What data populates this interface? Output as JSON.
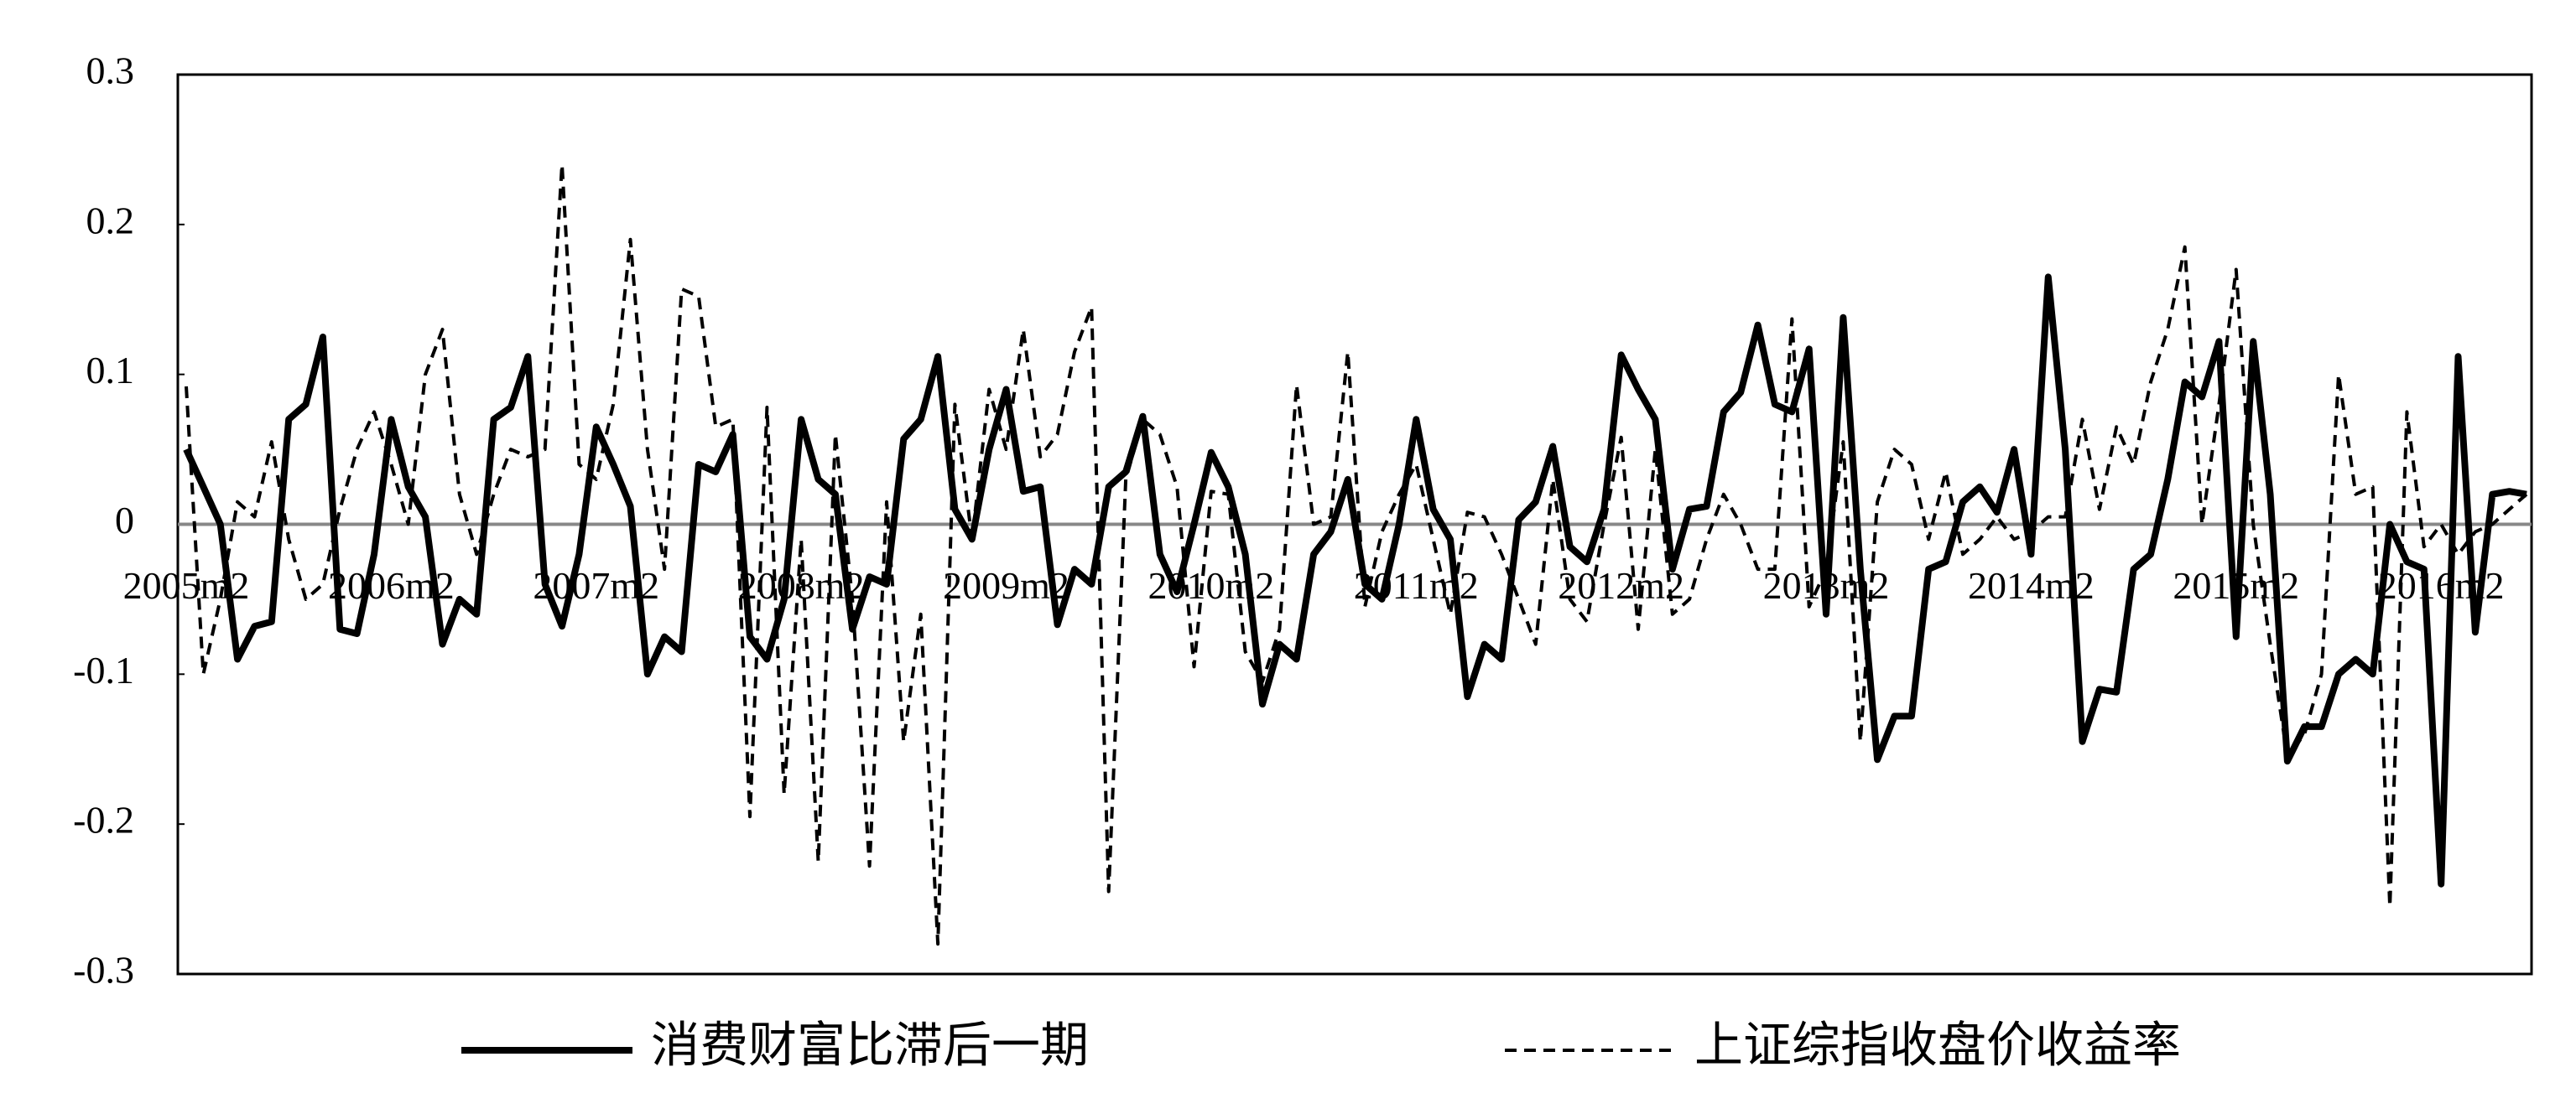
{
  "chart_data": {
    "type": "line",
    "categories": [
      "2005m2",
      null,
      null,
      null,
      null,
      null,
      null,
      null,
      null,
      null,
      null,
      null,
      "2006m2",
      null,
      null,
      null,
      null,
      null,
      null,
      null,
      null,
      null,
      null,
      null,
      "2007m2",
      null,
      null,
      null,
      null,
      null,
      null,
      null,
      null,
      null,
      null,
      null,
      "2008m2",
      null,
      null,
      null,
      null,
      null,
      null,
      null,
      null,
      null,
      null,
      null,
      "2009m2",
      null,
      null,
      null,
      null,
      null,
      null,
      null,
      null,
      null,
      null,
      null,
      "2010m2",
      null,
      null,
      null,
      null,
      null,
      null,
      null,
      null,
      null,
      null,
      null,
      "2011m2",
      null,
      null,
      null,
      null,
      null,
      null,
      null,
      null,
      null,
      null,
      null,
      "2012m2",
      null,
      null,
      null,
      null,
      null,
      null,
      null,
      null,
      null,
      null,
      null,
      "2013m2",
      null,
      null,
      null,
      null,
      null,
      null,
      null,
      null,
      null,
      null,
      null,
      "2014m2",
      null,
      null,
      null,
      null,
      null,
      null,
      null,
      null,
      null,
      null,
      null,
      "2015m2",
      null,
      null,
      null,
      null,
      null,
      null,
      null,
      null,
      null,
      null,
      null,
      "2016m2",
      null,
      null,
      null,
      null,
      null
    ],
    "series": [
      {
        "name": "消费财富比滞后一期",
        "color": "#000000",
        "line_style": "solid",
        "values": [
          0.05,
          0.025,
          0.0,
          -0.09,
          -0.068,
          -0.065,
          0.07,
          0.08,
          0.125,
          -0.07,
          -0.073,
          -0.02,
          0.07,
          0.025,
          0.005,
          -0.08,
          -0.05,
          -0.06,
          0.07,
          0.078,
          0.112,
          -0.04,
          -0.068,
          -0.02,
          0.065,
          0.04,
          0.012,
          -0.1,
          -0.075,
          -0.085,
          0.04,
          0.035,
          0.06,
          -0.075,
          -0.09,
          -0.05,
          0.07,
          0.03,
          0.02,
          -0.07,
          -0.035,
          -0.04,
          0.057,
          0.07,
          0.112,
          0.01,
          -0.01,
          0.05,
          0.09,
          0.022,
          0.025,
          -0.067,
          -0.03,
          -0.04,
          0.025,
          0.035,
          0.072,
          -0.02,
          -0.045,
          0.0,
          0.048,
          0.025,
          -0.02,
          -0.12,
          -0.08,
          -0.09,
          -0.02,
          -0.005,
          0.03,
          -0.04,
          -0.05,
          0.0,
          0.07,
          0.01,
          -0.01,
          -0.115,
          -0.08,
          -0.09,
          0.003,
          0.015,
          0.052,
          -0.015,
          -0.025,
          0.01,
          0.113,
          0.09,
          0.07,
          -0.03,
          0.01,
          0.012,
          0.075,
          0.088,
          0.133,
          0.08,
          0.075,
          0.117,
          -0.06,
          0.138,
          -0.03,
          -0.157,
          -0.128,
          -0.128,
          -0.03,
          -0.025,
          0.015,
          0.025,
          0.008,
          0.05,
          -0.02,
          0.165,
          0.05,
          -0.145,
          -0.11,
          -0.112,
          -0.03,
          -0.02,
          0.03,
          0.095,
          0.085,
          0.122,
          -0.075,
          0.122,
          0.02,
          -0.158,
          -0.135,
          -0.135,
          -0.1,
          -0.09,
          -0.1,
          0.0,
          -0.025,
          -0.03,
          -0.24,
          0.112,
          -0.072,
          0.02,
          0.022,
          0.02
        ]
      },
      {
        "name": "上证综指收盘价收益率",
        "color": "#000000",
        "line_style": "dashed",
        "values": [
          0.092,
          -0.1,
          -0.05,
          0.015,
          0.005,
          0.055,
          -0.01,
          -0.05,
          -0.04,
          0.01,
          0.05,
          0.075,
          0.04,
          0.0,
          0.1,
          0.13,
          0.02,
          -0.02,
          0.02,
          0.05,
          0.045,
          0.05,
          0.24,
          0.04,
          0.03,
          0.08,
          0.19,
          0.05,
          -0.03,
          0.157,
          0.152,
          0.065,
          0.07,
          -0.195,
          0.078,
          -0.18,
          -0.01,
          -0.225,
          0.06,
          -0.05,
          -0.228,
          0.015,
          -0.145,
          -0.06,
          -0.28,
          0.08,
          -0.01,
          0.09,
          0.05,
          0.13,
          0.045,
          0.06,
          0.115,
          0.145,
          -0.245,
          0.03,
          0.07,
          0.06,
          0.025,
          -0.095,
          0.022,
          0.02,
          -0.085,
          -0.105,
          -0.07,
          0.093,
          0.0,
          0.005,
          0.115,
          -0.055,
          -0.005,
          0.02,
          0.04,
          -0.01,
          -0.06,
          0.008,
          0.005,
          -0.02,
          -0.05,
          -0.08,
          0.03,
          -0.05,
          -0.065,
          0.0,
          0.058,
          -0.07,
          0.05,
          -0.06,
          -0.05,
          -0.01,
          0.02,
          0.0,
          -0.03,
          -0.03,
          0.137,
          -0.055,
          -0.03,
          0.055,
          -0.145,
          0.015,
          0.05,
          0.04,
          -0.01,
          0.035,
          -0.02,
          -0.01,
          0.005,
          -0.01,
          -0.005,
          0.005,
          0.005,
          0.07,
          0.01,
          0.065,
          0.04,
          0.095,
          0.13,
          0.185,
          0.0,
          0.08,
          0.17,
          0.0,
          -0.08,
          -0.155,
          -0.14,
          -0.1,
          0.1,
          0.02,
          0.025,
          -0.255,
          0.075,
          -0.015,
          0.0,
          -0.02,
          -0.005,
          0.0,
          0.01,
          0.02
        ]
      }
    ],
    "ylim": [
      -0.3,
      0.3
    ],
    "yticks": [
      0.3,
      0.2,
      0.1,
      0,
      -0.1,
      -0.2,
      -0.3
    ],
    "zero_line": true,
    "legend": "bottom"
  }
}
